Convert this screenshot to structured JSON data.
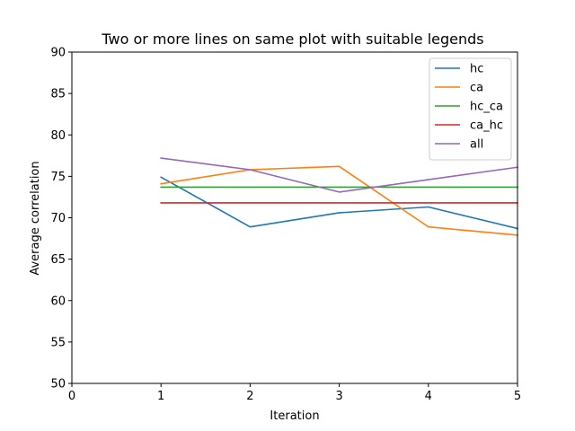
{
  "chart_data": {
    "type": "line",
    "title": "Two or more lines on same plot with suitable legends",
    "xlabel": "Iteration",
    "ylabel": "Average correlation",
    "xlim": [
      0,
      5
    ],
    "ylim": [
      50,
      90
    ],
    "x_ticks": [
      0,
      1,
      2,
      3,
      4,
      5
    ],
    "y_ticks": [
      50,
      55,
      60,
      65,
      70,
      75,
      80,
      85,
      90
    ],
    "grid": false,
    "legend_position": "top-right",
    "x": [
      1,
      2,
      3,
      4,
      5
    ],
    "series": [
      {
        "name": "hc",
        "color": "#1f77b4",
        "values": [
          74.9,
          68.9,
          70.6,
          71.3,
          68.7
        ]
      },
      {
        "name": "ca",
        "color": "#ff7f0e",
        "values": [
          74.1,
          75.8,
          76.2,
          68.9,
          67.9
        ]
      },
      {
        "name": "hc_ca",
        "color": "#2ca02c",
        "values": [
          73.7,
          73.7,
          73.7,
          73.7,
          73.7
        ]
      },
      {
        "name": "ca_hc",
        "color": "#d62728",
        "values": [
          71.8,
          71.8,
          71.8,
          71.8,
          71.8
        ]
      },
      {
        "name": "all",
        "color": "#9467bd",
        "values": [
          77.2,
          75.8,
          73.1,
          74.6,
          76.1
        ]
      }
    ]
  }
}
